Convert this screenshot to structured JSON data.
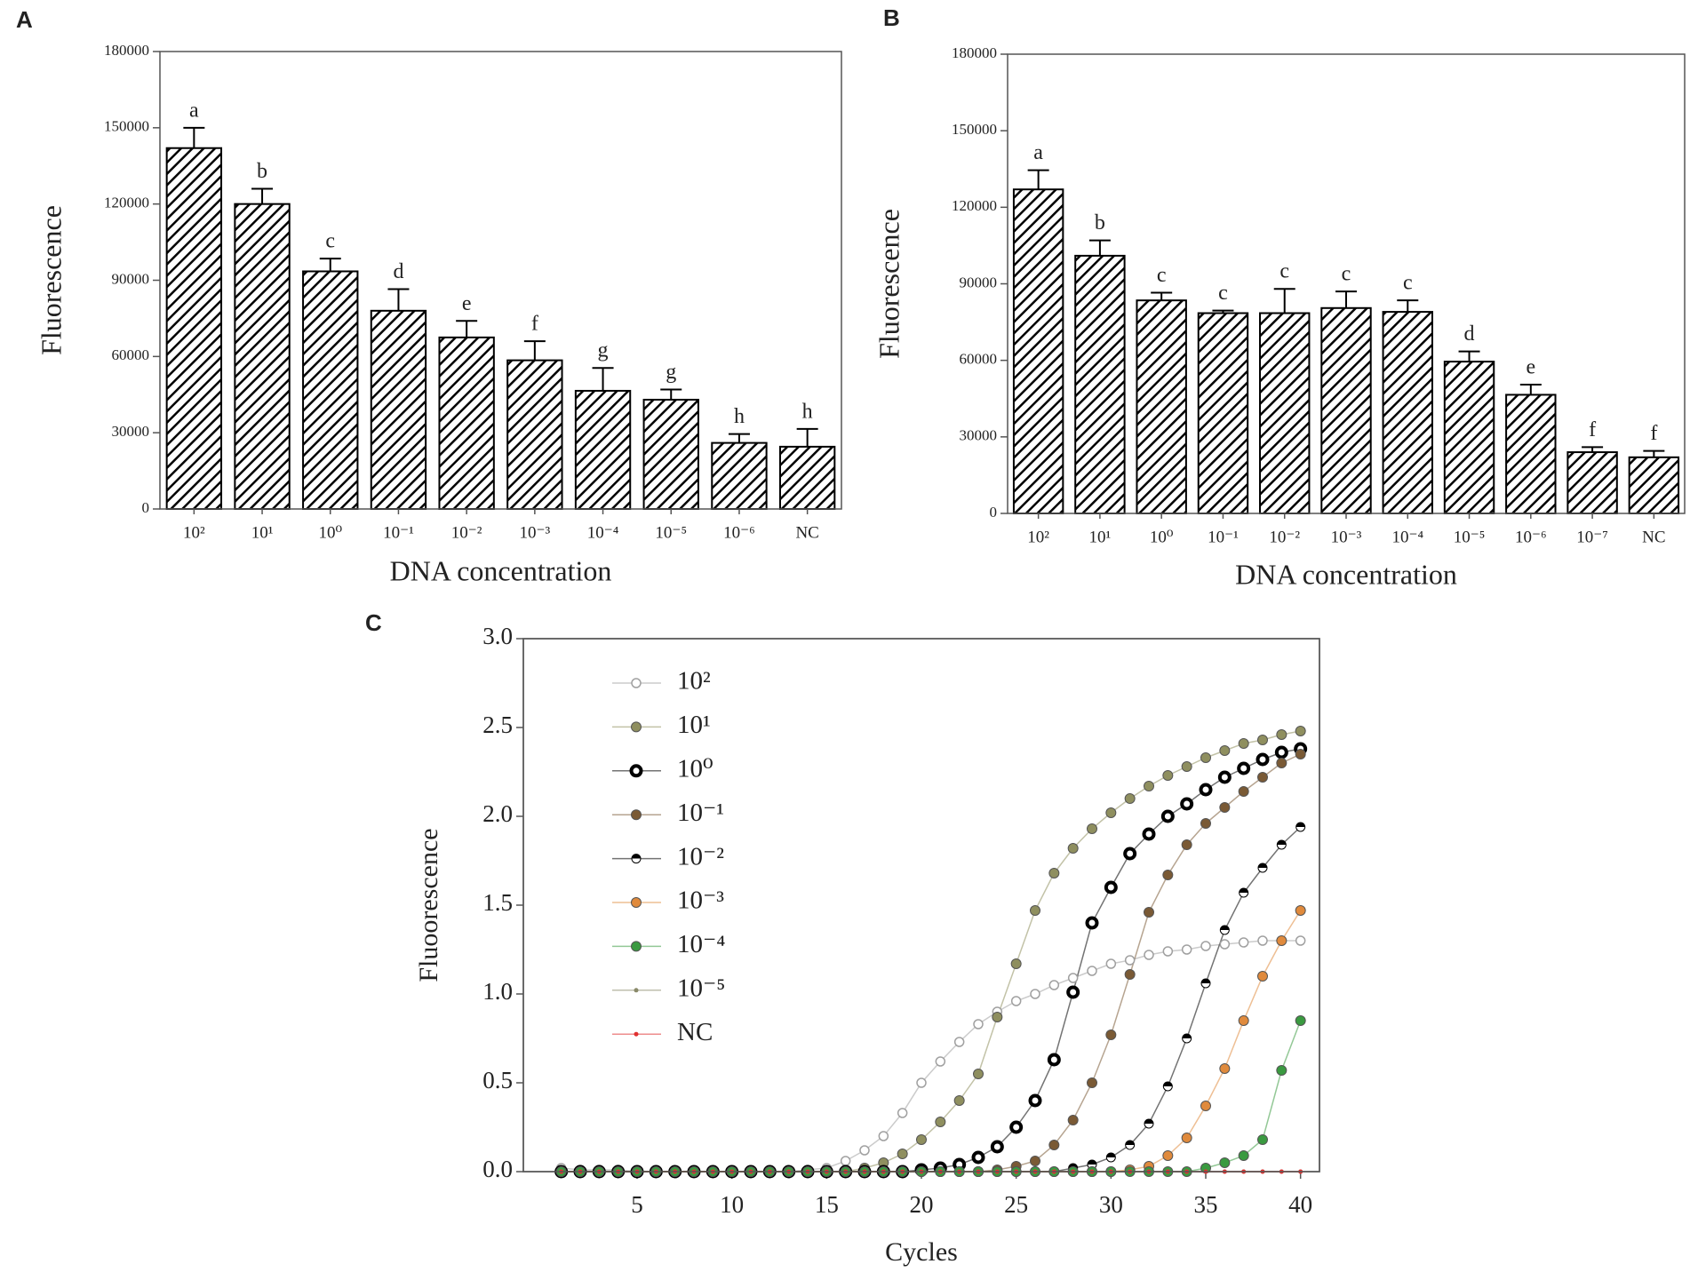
{
  "chart_data": [
    {
      "type": "bar",
      "label": "A",
      "ylabel": "Fluorescence",
      "xlabel": "DNA concentration",
      "categories": [
        "10²",
        "10¹",
        "10⁰",
        "10⁻¹",
        "10⁻²",
        "10⁻³",
        "10⁻⁴",
        "10⁻⁵",
        "10⁻⁶",
        "NC"
      ],
      "values": [
        142000,
        120000,
        93500,
        78000,
        67500,
        58500,
        46500,
        43000,
        26000,
        24500
      ],
      "errors": [
        8000,
        6000,
        5000,
        8500,
        6500,
        7500,
        9000,
        4000,
        3500,
        7000
      ],
      "labels": [
        "a",
        "b",
        "c",
        "d",
        "e",
        "f",
        "g",
        "g",
        "h",
        "h"
      ],
      "color": "#000000",
      "ylim": [
        0,
        180000
      ],
      "yticks": [
        0,
        30000,
        60000,
        90000,
        120000,
        150000,
        180000
      ]
    },
    {
      "type": "bar",
      "label": "B",
      "ylabel": "Fluorescence",
      "xlabel": "DNA concentration",
      "categories": [
        "10²",
        "10¹",
        "10⁰",
        "10⁻¹",
        "10⁻²",
        "10⁻³",
        "10⁻⁴",
        "10⁻⁵",
        "10⁻⁶",
        "10⁻⁷",
        "NC"
      ],
      "values": [
        127000,
        101000,
        83500,
        78500,
        78500,
        80500,
        79000,
        59500,
        46500,
        24000,
        22000
      ],
      "errors": [
        7500,
        6000,
        3000,
        1000,
        9500,
        6500,
        4500,
        4000,
        4000,
        2000,
        2500
      ],
      "labels": [
        "a",
        "b",
        "c",
        "c",
        "c",
        "c",
        "c",
        "d",
        "e",
        "f",
        "f"
      ],
      "color": "#000000",
      "ylim": [
        0,
        180000
      ],
      "yticks": [
        0,
        30000,
        60000,
        90000,
        120000,
        150000,
        180000
      ]
    },
    {
      "type": "line",
      "label": "C",
      "ylabel": "Fluoorescence",
      "xlabel": "Cycles",
      "x": [
        1,
        2,
        3,
        4,
        5,
        6,
        7,
        8,
        9,
        10,
        11,
        12,
        13,
        14,
        15,
        16,
        17,
        18,
        19,
        20,
        21,
        22,
        23,
        24,
        25,
        26,
        27,
        28,
        29,
        30,
        31,
        32,
        33,
        34,
        35,
        36,
        37,
        38,
        39,
        40
      ],
      "xlim": [
        -1,
        41
      ],
      "xticks": [
        5,
        10,
        15,
        20,
        25,
        30,
        35,
        40
      ],
      "ylim": [
        0,
        3
      ],
      "yticks": [
        {
          "value": 0,
          "label": "0.0"
        },
        {
          "value": 0.5,
          "label": "0.5"
        },
        {
          "value": 1,
          "label": "1.0"
        },
        {
          "value": 1.5,
          "label": "1.5"
        },
        {
          "value": 2,
          "label": "2.0"
        },
        {
          "value": 2.5,
          "label": "2.5"
        },
        {
          "value": 3,
          "label": "3.0"
        }
      ],
      "legend": "upper left",
      "series": [
        {
          "name": "10²",
          "color": "#a0a0a0",
          "marker": "open",
          "values": [
            0.02,
            0.01,
            0.01,
            0.01,
            0,
            0,
            0,
            0,
            0,
            0,
            0,
            0,
            0,
            0.01,
            0.02,
            0.06,
            0.12,
            0.2,
            0.33,
            0.5,
            0.62,
            0.73,
            0.83,
            0.9,
            0.96,
            1.0,
            1.05,
            1.09,
            1.13,
            1.17,
            1.19,
            1.22,
            1.24,
            1.25,
            1.27,
            1.28,
            1.29,
            1.3,
            1.3,
            1.3
          ]
        },
        {
          "name": "10¹",
          "color": "#8f8f5f",
          "marker": "filled",
          "values": [
            0,
            0,
            0,
            0,
            0,
            0,
            0,
            0,
            0,
            0,
            0,
            0,
            0,
            0,
            0,
            0,
            0.02,
            0.05,
            0.1,
            0.18,
            0.28,
            0.4,
            0.55,
            0.87,
            1.17,
            1.47,
            1.68,
            1.82,
            1.93,
            2.02,
            2.1,
            2.17,
            2.23,
            2.28,
            2.33,
            2.37,
            2.41,
            2.43,
            2.46,
            2.48
          ]
        },
        {
          "name": "10⁰",
          "color": "#000000",
          "marker": "ring",
          "values": [
            0,
            0,
            0,
            0,
            0,
            0,
            0,
            0,
            0,
            0,
            0,
            0,
            0,
            0,
            0,
            0,
            0,
            0,
            0,
            0.01,
            0.02,
            0.04,
            0.08,
            0.14,
            0.25,
            0.4,
            0.63,
            1.01,
            1.4,
            1.6,
            1.79,
            1.9,
            2.0,
            2.07,
            2.15,
            2.22,
            2.27,
            2.32,
            2.36,
            2.38
          ]
        },
        {
          "name": "10⁻¹",
          "color": "#7a5a35",
          "marker": "filled",
          "values": [
            0,
            0,
            0,
            0,
            0,
            0,
            0,
            0,
            0,
            0,
            0,
            0,
            0,
            0,
            0,
            0,
            0,
            0,
            0,
            0,
            0,
            0,
            0,
            0.01,
            0.03,
            0.06,
            0.15,
            0.29,
            0.5,
            0.77,
            1.11,
            1.46,
            1.67,
            1.84,
            1.96,
            2.05,
            2.14,
            2.22,
            2.3,
            2.35
          ]
        },
        {
          "name": "10⁻²",
          "color": "#000000",
          "marker": "half",
          "values": [
            0,
            0,
            0,
            0,
            0,
            0,
            0,
            0,
            0,
            0,
            0,
            0,
            0,
            0,
            0,
            0,
            0,
            0,
            0,
            0,
            0,
            0,
            0,
            0,
            0,
            0,
            0,
            0.02,
            0.04,
            0.08,
            0.15,
            0.27,
            0.48,
            0.75,
            1.06,
            1.36,
            1.57,
            1.71,
            1.84,
            1.94
          ]
        },
        {
          "name": "10⁻³",
          "color": "#e08a3c",
          "marker": "filled",
          "values": [
            0,
            0,
            0,
            0,
            0,
            0,
            0,
            0,
            0,
            0,
            0,
            0,
            0,
            0,
            0,
            0,
            0,
            0,
            0,
            0,
            0,
            0,
            0,
            0,
            0,
            0,
            0,
            0,
            0,
            0,
            0.01,
            0.03,
            0.09,
            0.19,
            0.37,
            0.58,
            0.85,
            1.1,
            1.3,
            1.47
          ]
        },
        {
          "name": "10⁻⁴",
          "color": "#3a9a40",
          "marker": "filled",
          "values": [
            0,
            0,
            0,
            0,
            0,
            0,
            0,
            0,
            0,
            0,
            0,
            0,
            0,
            0,
            0,
            0,
            0,
            0,
            0,
            0,
            0,
            0,
            0,
            0,
            0,
            0,
            0,
            0,
            0,
            0,
            0,
            0,
            0,
            0,
            0.02,
            0.05,
            0.09,
            0.18,
            0.57,
            0.85
          ]
        },
        {
          "name": "10⁻⁵",
          "color": "#8a8a6a",
          "marker": "dot",
          "values": [
            0,
            0,
            0,
            0,
            0,
            0,
            0,
            0,
            0,
            0,
            0,
            0,
            0,
            0,
            0,
            0,
            0,
            0,
            0,
            0,
            0,
            0,
            0,
            0,
            0,
            0,
            0,
            0,
            0,
            0,
            0,
            0,
            0,
            0,
            0,
            0,
            0,
            0,
            0,
            0
          ]
        },
        {
          "name": "NC",
          "color": "#e03030",
          "marker": "dot",
          "values": [
            0,
            0,
            0,
            0,
            0,
            0,
            0,
            0,
            0,
            0,
            0,
            0,
            0,
            0,
            0,
            0,
            0,
            0,
            0,
            0,
            0,
            0,
            0,
            0,
            0,
            0,
            0,
            0,
            0,
            0,
            0,
            0,
            0,
            0,
            0,
            0,
            0,
            0,
            0,
            0
          ]
        }
      ]
    }
  ]
}
